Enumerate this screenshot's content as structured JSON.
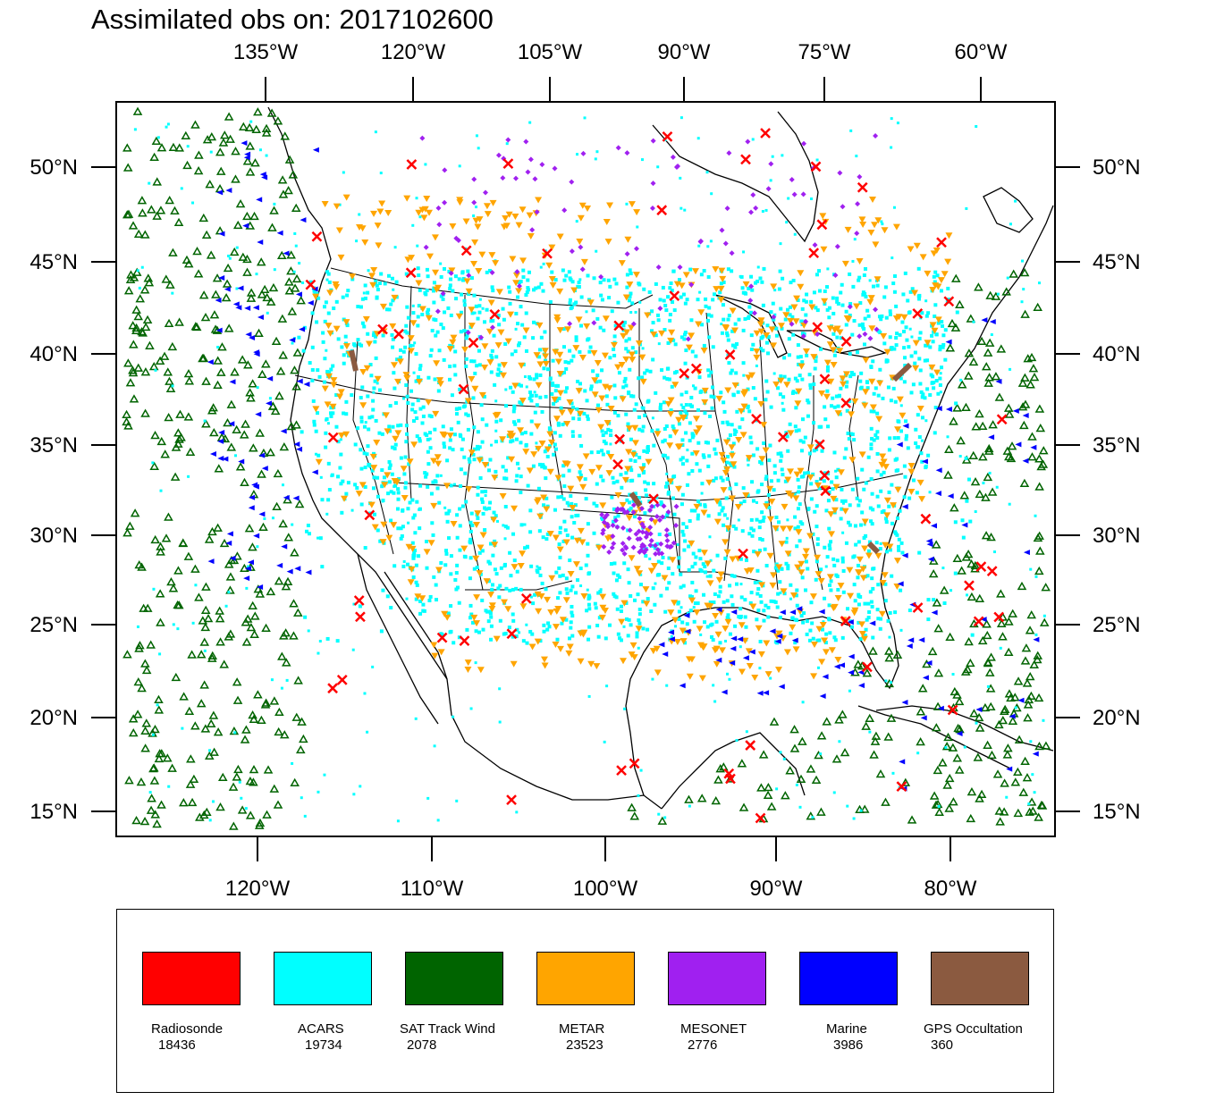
{
  "title": "Assimilated obs on: 2017102600",
  "map": {
    "top_lon_labels": [
      "135°W",
      "120°W",
      "105°W",
      "90°W",
      "75°W",
      "60°W"
    ],
    "bottom_lon_labels": [
      "120°W",
      "110°W",
      "100°W",
      "90°W",
      "80°W"
    ],
    "lat_labels": [
      "50°N",
      "45°N",
      "40°N",
      "35°N",
      "30°N",
      "25°N",
      "20°N",
      "15°N"
    ]
  },
  "colors": {
    "Radiosonde": "#ff0000",
    "ACARS": "#00ffff",
    "SAT Track Wind": "#006400",
    "METAR": "#ffa500",
    "MESONET": "#a020f0",
    "Marine": "#0000ff",
    "GPS Occultation": "#8b5a40"
  },
  "legend": [
    {
      "name": "Radiosonde",
      "count": "18436",
      "color": "#ff0000"
    },
    {
      "name": "ACARS",
      "count": "19734",
      "color": "#00ffff"
    },
    {
      "name": "SAT Track Wind",
      "count": "2078",
      "color": "#006400"
    },
    {
      "name": "METAR",
      "count": "23523",
      "color": "#ffa500"
    },
    {
      "name": "MESONET",
      "count": "2776",
      "color": "#a020f0"
    },
    {
      "name": "Marine",
      "count": "3986",
      "color": "#0000ff"
    },
    {
      "name": "GPS Occultation",
      "count": "360",
      "color": "#8b5a40"
    }
  ]
}
